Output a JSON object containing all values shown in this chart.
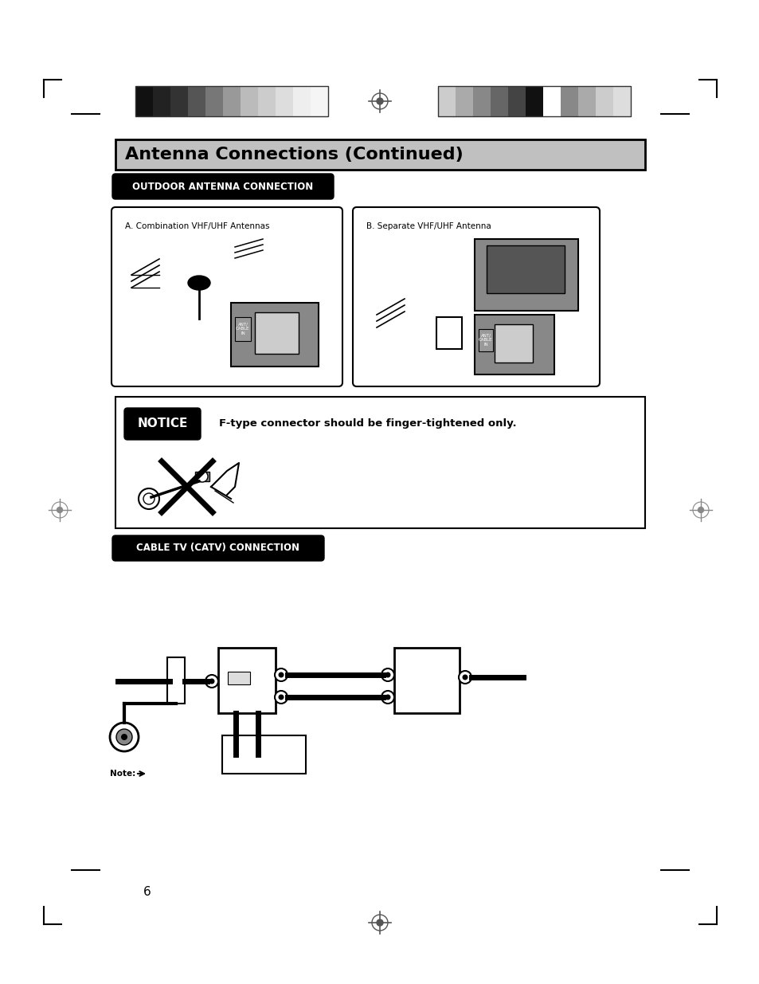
{
  "bg_color": "#ffffff",
  "title_bar_color": "#c0c0c0",
  "title_text": "Antenna Connections (Continued)",
  "title_fontsize": 16,
  "section1_label": "OUTDOOR ANTENNA CONNECTION",
  "section2_label": "CABLE TV (CATV) CONNECTION",
  "notice_text": "F-type connector should be finger-tightened only.",
  "box_a_label": "A. Combination VHF/UHF Antennas",
  "box_b_label": "B. Separate VHF/UHF Antenna",
  "page_number": "6",
  "colors_left": [
    "#111111",
    "#222222",
    "#333333",
    "#555555",
    "#777777",
    "#999999",
    "#bbbbbb",
    "#cccccc",
    "#dddddd",
    "#eeeeee",
    "#f5f5f5"
  ],
  "colors_right": [
    "#cccccc",
    "#aaaaaa",
    "#888888",
    "#666666",
    "#444444",
    "#111111",
    "#ffffff",
    "#888888",
    "#aaaaaa",
    "#cccccc",
    "#dddddd"
  ]
}
